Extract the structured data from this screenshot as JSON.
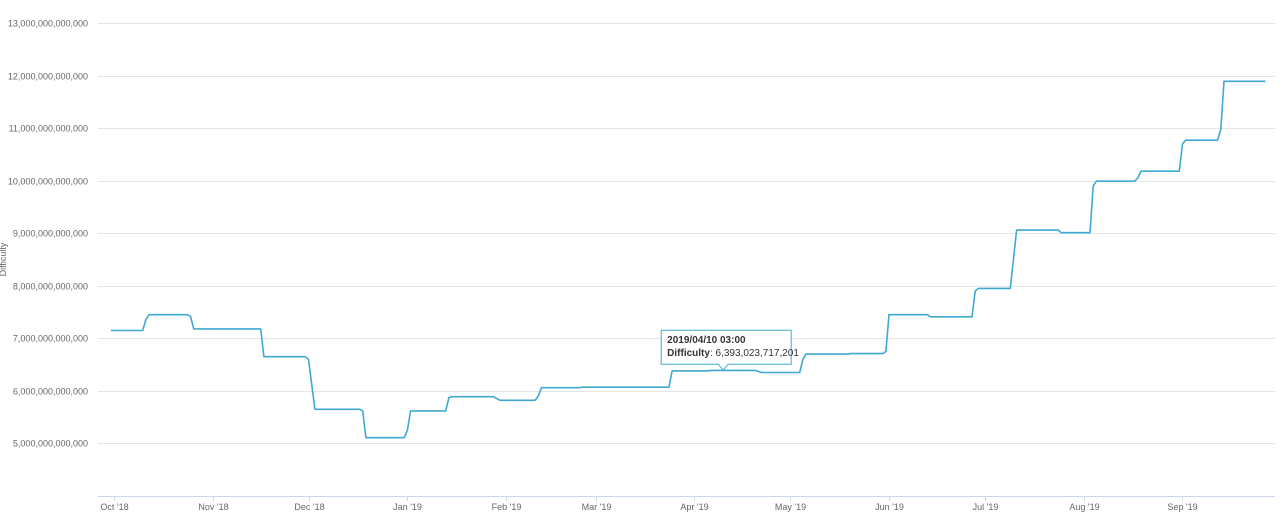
{
  "chart_data": {
    "type": "line",
    "ylabel": "Difficulty",
    "xlabel": "",
    "ylim": [
      4000000000000,
      13000000000000
    ],
    "yticks": [
      5000000000000,
      6000000000000,
      7000000000000,
      8000000000000,
      9000000000000,
      10000000000000,
      11000000000000,
      12000000000000,
      13000000000000
    ],
    "ytick_labels": [
      "5,000,000,000,000",
      "6,000,000,000,000",
      "7,000,000,000,000",
      "8,000,000,000,000",
      "9,000,000,000,000",
      "10,000,000,000,000",
      "11,000,000,000,000",
      "12,000,000,000,000",
      "13,000,000,000,000"
    ],
    "xlim": [
      "2018-09-26",
      "2019-09-30"
    ],
    "xticks": [
      "2018-10-01",
      "2018-11-01",
      "2018-12-01",
      "2019-01-01",
      "2019-02-01",
      "2019-03-01",
      "2019-04-01",
      "2019-05-01",
      "2019-06-01",
      "2019-07-01",
      "2019-08-01",
      "2019-09-01"
    ],
    "xtick_labels": [
      "Oct '18",
      "Nov '18",
      "Dec '18",
      "Jan '19",
      "Feb '19",
      "Mar '19",
      "Apr '19",
      "May '19",
      "Jun '19",
      "Jul '19",
      "Aug '19",
      "Sep '19"
    ],
    "grid": true,
    "series_color": "#3fa9d1",
    "tooltip_border_color": "#3fa9d1",
    "series": [
      {
        "values": [
          [
            "2018-09-30",
            7150000000000
          ],
          [
            "2018-10-10",
            7150000000000
          ],
          [
            "2018-10-11",
            7350000000000
          ],
          [
            "2018-10-12",
            7450000000000
          ],
          [
            "2018-10-24",
            7450000000000
          ],
          [
            "2018-10-25",
            7420000000000
          ],
          [
            "2018-10-26",
            7180000000000
          ],
          [
            "2018-11-15",
            7180000000000
          ],
          [
            "2018-11-16",
            7180000000000
          ],
          [
            "2018-11-17",
            6650000000000
          ],
          [
            "2018-11-30",
            6650000000000
          ],
          [
            "2018-12-01",
            6600000000000
          ],
          [
            "2018-12-03",
            5650000000000
          ],
          [
            "2018-12-17",
            5650000000000
          ],
          [
            "2018-12-18",
            5620000000000
          ],
          [
            "2018-12-19",
            5110000000000
          ],
          [
            "2018-12-31",
            5110000000000
          ],
          [
            "2019-01-01",
            5250000000000
          ],
          [
            "2019-01-02",
            5620000000000
          ],
          [
            "2019-01-13",
            5620000000000
          ],
          [
            "2019-01-14",
            5870000000000
          ],
          [
            "2019-01-15",
            5890000000000
          ],
          [
            "2019-01-28",
            5890000000000
          ],
          [
            "2019-01-30",
            5820000000000
          ],
          [
            "2019-02-10",
            5820000000000
          ],
          [
            "2019-02-11",
            5900000000000
          ],
          [
            "2019-02-12",
            6060000000000
          ],
          [
            "2019-02-24",
            6060000000000
          ],
          [
            "2019-02-25",
            6070000000000
          ],
          [
            "2019-03-24",
            6070000000000
          ],
          [
            "2019-03-25",
            6380000000000
          ],
          [
            "2019-04-05",
            6380000000000
          ],
          [
            "2019-04-06",
            6390000000000
          ],
          [
            "2019-04-20",
            6390000000000
          ],
          [
            "2019-04-22",
            6350000000000
          ],
          [
            "2019-05-04",
            6350000000000
          ],
          [
            "2019-05-05",
            6600000000000
          ],
          [
            "2019-05-06",
            6700000000000
          ],
          [
            "2019-05-19",
            6700000000000
          ],
          [
            "2019-05-20",
            6710000000000
          ],
          [
            "2019-05-30",
            6710000000000
          ],
          [
            "2019-05-31",
            6750000000000
          ],
          [
            "2019-06-01",
            7450000000000
          ],
          [
            "2019-06-13",
            7450000000000
          ],
          [
            "2019-06-14",
            7410000000000
          ],
          [
            "2019-06-27",
            7410000000000
          ],
          [
            "2019-06-28",
            7900000000000
          ],
          [
            "2019-06-29",
            7950000000000
          ],
          [
            "2019-07-09",
            7950000000000
          ],
          [
            "2019-07-11",
            9060000000000
          ],
          [
            "2019-07-24",
            9060000000000
          ],
          [
            "2019-07-25",
            9010000000000
          ],
          [
            "2019-08-03",
            9010000000000
          ],
          [
            "2019-08-04",
            9900000000000
          ],
          [
            "2019-08-05",
            9990000000000
          ],
          [
            "2019-08-17",
            9990000000000
          ],
          [
            "2019-08-18",
            10050000000000
          ],
          [
            "2019-08-19",
            10180000000000
          ],
          [
            "2019-08-31",
            10180000000000
          ],
          [
            "2019-09-01",
            10700000000000
          ],
          [
            "2019-09-02",
            10770000000000
          ],
          [
            "2019-09-12",
            10770000000000
          ],
          [
            "2019-09-13",
            10980000000000
          ],
          [
            "2019-09-14",
            11890000000000
          ],
          [
            "2019-09-27",
            11890000000000
          ]
        ]
      }
    ],
    "tooltip": {
      "x": "2019-04-10",
      "y": 6393023717201,
      "title": "2019/04/10 03:00",
      "key": "Difficulty",
      "value": ": 6,393,023,717,201"
    }
  }
}
